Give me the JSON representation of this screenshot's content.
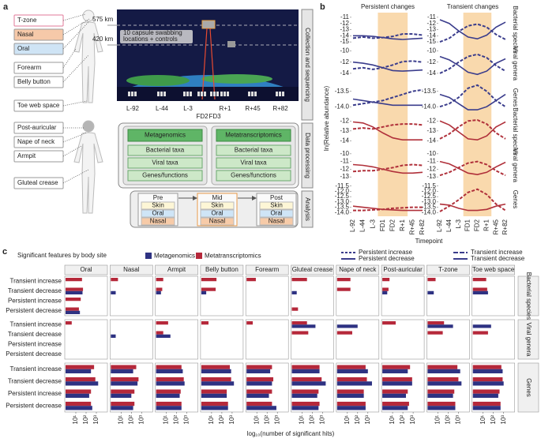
{
  "diagram": {
    "label": "a",
    "body_sites_upper": [
      "T-zone",
      "Nasal",
      "Oral",
      "Forearm",
      "Belly button",
      "Toe web space"
    ],
    "body_sites_lower": [
      "Post-auricular",
      "Nape of neck",
      "Armpit",
      "Gluteal crease"
    ],
    "altitudes": [
      "575 km",
      "420 km"
    ],
    "capsule_note": [
      "10 capsule swabbing",
      "locations + controls"
    ],
    "timepoints": [
      "L-92",
      "L-44",
      "L-3",
      "FD2",
      "FD3",
      "R+1",
      "R+45",
      "R+82"
    ],
    "stages": [
      "Collection and sequencing",
      "Data processing",
      "Analysis"
    ],
    "pipelines": [
      {
        "title": "Metagenomics",
        "steps": [
          "Bacterial taxa",
          "Viral taxa",
          "Genes/functions"
        ]
      },
      {
        "title": "Metatranscriptomics",
        "steps": [
          "Bacterial taxa",
          "Viral taxa",
          "Genes/functions"
        ]
      }
    ],
    "analysis": [
      {
        "title": "Pre",
        "sites": [
          "Skin",
          "Oral",
          "Nasal"
        ]
      },
      {
        "title": "Mid",
        "sites": [
          "Skin",
          "Oral",
          "Nasal"
        ]
      },
      {
        "title": "Post",
        "sites": [
          "Skin",
          "Oral",
          "Nasal"
        ]
      }
    ]
  },
  "chart_data": [
    {
      "type": "line",
      "label": "b",
      "columns": [
        "Persistent changes",
        "Transient changes"
      ],
      "x": [
        "L-92",
        "L-44",
        "L-3",
        "FD1",
        "FD2",
        "R+1",
        "R+45",
        "R+82"
      ],
      "xlabel": "Timepoint",
      "ylabel": "ln(Relative abundance)",
      "legend": [
        {
          "name": "Persistent increase",
          "dashed": true,
          "color": "#3b3d8c"
        },
        {
          "name": "Persistent decrease",
          "dashed": false,
          "color": "#3b3d8c"
        },
        {
          "name": "Transient increase",
          "dashed": true,
          "color": "#3b3d8c"
        },
        {
          "name": "Transient decrease",
          "dashed": false,
          "color": "#3b3d8c"
        }
      ],
      "rows": [
        {
          "name": "Bacterial species",
          "color": "#3b3d8c",
          "ylim": [
            -15.5,
            -10.5
          ],
          "yticks": [
            -11,
            -12,
            -13,
            -14,
            -15
          ],
          "persistent": {
            "increase": [
              -14.4,
              -14.2,
              -14.4,
              -14.3,
              -14.1,
              -13.7,
              -13.7,
              -13.9
            ],
            "decrease": [
              -14.0,
              -14.0,
              -14.1,
              -14.3,
              -14.5,
              -14.6,
              -14.5,
              -14.4
            ]
          },
          "transient": {
            "increase": [
              -15.0,
              -14.4,
              -13.3,
              -12.4,
              -12.1,
              -12.6,
              -13.8,
              -14.6
            ],
            "decrease": [
              -11.4,
              -12.0,
              -13.2,
              -14.2,
              -14.5,
              -13.9,
              -12.6,
              -11.8
            ]
          }
        },
        {
          "name": "Viral genera",
          "color": "#3b3d8c",
          "ylim": [
            -15,
            -9.5
          ],
          "yticks": [
            -10,
            -12,
            -14
          ],
          "persistent": {
            "increase": [
              -13.2,
              -13.0,
              -13.3,
              -13.0,
              -12.5,
              -11.9,
              -11.8,
              -12.0
            ],
            "decrease": [
              -12.0,
              -12.2,
              -12.5,
              -13.0,
              -13.5,
              -13.6,
              -13.5,
              -13.4
            ]
          },
          "transient": {
            "increase": [
              -14.0,
              -13.2,
              -12.0,
              -11.0,
              -10.6,
              -11.2,
              -12.6,
              -13.6
            ],
            "decrease": [
              -11.0,
              -11.6,
              -12.6,
              -13.8,
              -14.2,
              -13.6,
              -12.2,
              -11.4
            ]
          }
        },
        {
          "name": "Genes",
          "color": "#3b3d8c",
          "ylim": [
            -14.2,
            -13.2
          ],
          "yticks": [
            -13.5,
            {
              "value": -14,
              "label": "-14.0"
            }
          ],
          "persistent": {
            "increase": [
              -13.95,
              -13.9,
              -13.85,
              -13.8,
              -13.7,
              -13.6,
              -13.5,
              -13.45
            ],
            "decrease": [
              -13.75,
              -13.8,
              -13.85,
              -13.9,
              -13.95,
              -13.95,
              -13.95,
              -13.95
            ]
          },
          "transient": {
            "increase": [
              -14.0,
              -13.9,
              -13.7,
              -13.4,
              -13.3,
              -13.5,
              -13.8,
              -14.0
            ],
            "decrease": [
              -13.6,
              -13.7,
              -13.9,
              -14.1,
              -14.1,
              -14.0,
              -13.8,
              -13.6
            ]
          }
        },
        {
          "name": "Bacterial species",
          "color": "#b0303a",
          "ylim": [
            -14.6,
            -11.5
          ],
          "yticks": [
            -12,
            -13,
            -14
          ],
          "persistent": {
            "increase": [
              -12.8,
              -12.7,
              -12.8,
              -12.6,
              -12.4,
              -12.3,
              -12.3,
              -12.4
            ],
            "decrease": [
              -12.1,
              -12.2,
              -12.6,
              -13.2,
              -13.7,
              -13.9,
              -13.9,
              -13.9
            ]
          },
          "transient": {
            "increase": [
              -13.8,
              -13.3,
              -12.6,
              -12.0,
              -11.9,
              -12.3,
              -13.2,
              -13.8
            ],
            "decrease": [
              -12.0,
              -12.4,
              -13.1,
              -13.8,
              -13.9,
              -13.5,
              -12.6,
              -12.1
            ]
          }
        },
        {
          "name": "Viral genera",
          "color": "#b0303a",
          "ylim": [
            -13.5,
            -9.5
          ],
          "yticks": [
            -10,
            -11,
            -12,
            -13
          ],
          "persistent": {
            "increase": [
              -12.3,
              -12.2,
              -12.2,
              -12.0,
              -11.8,
              -11.5,
              -11.4,
              -11.5
            ],
            "decrease": [
              -11.4,
              -11.5,
              -11.7,
              -12.0,
              -12.3,
              -12.5,
              -12.5,
              -12.4
            ]
          },
          "transient": {
            "increase": [
              -12.8,
              -12.4,
              -11.8,
              -11.2,
              -11.0,
              -11.4,
              -12.2,
              -12.8
            ],
            "decrease": [
              -11.0,
              -11.3,
              -11.9,
              -12.5,
              -12.7,
              -12.4,
              -11.7,
              -11.1
            ]
          }
        },
        {
          "name": "Genes",
          "color": "#b0303a",
          "ylim": [
            -14.2,
            -11.3
          ],
          "yticks": [
            -11.5,
            {
              "value": -12,
              "label": "-12.0"
            },
            -12.5,
            {
              "value": -13,
              "label": "-13.0"
            },
            -13.5,
            {
              "value": -14,
              "label": "-14.0"
            }
          ],
          "persistent": {
            "increase": [
              -13.8,
              -13.8,
              -13.75,
              -13.7,
              -13.6,
              -13.55,
              -13.5,
              -13.5
            ],
            "decrease": [
              -13.4,
              -13.5,
              -13.6,
              -13.7,
              -13.75,
              -13.8,
              -13.8,
              -13.8
            ]
          },
          "transient": {
            "increase": [
              -13.9,
              -13.4,
              -12.8,
              -12.1,
              -11.8,
              -12.3,
              -13.2,
              -13.8
            ],
            "decrease": [
              -13.2,
              -13.3,
              -13.6,
              -13.8,
              -13.8,
              -13.7,
              -13.4,
              -13.2
            ]
          }
        }
      ]
    },
    {
      "type": "bar",
      "orientation": "horizontal",
      "label": "c",
      "title": "Significant features by body site",
      "xlabel": "log₁₀(number of significant hits)",
      "xscale": "log",
      "xlim": [
        1,
        10000
      ],
      "xticks": [
        {
          "value": 10,
          "label": "10¹"
        },
        {
          "value": 100,
          "label": "10²"
        },
        {
          "value": 1000,
          "label": "10³"
        }
      ],
      "categories": [
        "Transient increase",
        "Transient decrease",
        "Persistent increase",
        "Persistent decrease"
      ],
      "sites": [
        "Oral",
        "Nasal",
        "Armpit",
        "Belly button",
        "Forearm",
        "Gluteal crease",
        "Nape of neck",
        "Post-auricular",
        "T-zone",
        "Toe web space"
      ],
      "series": [
        {
          "name": "Metagenomics",
          "color": "#2e3282"
        },
        {
          "name": "Metatranscriptomics",
          "color": "#b5283a"
        }
      ],
      "groups": [
        {
          "name": "Bacterial species",
          "series": [
            {
              "values": [
                [
                  null,
                  45,
                  null,
                  25
                ],
                [
                  null,
                  3,
                  null,
                  null
                ],
                [
                  null,
                  3,
                  null,
                  null
                ],
                [
                  null,
                  3,
                  null,
                  null
                ],
                [
                  null,
                  null,
                  null,
                  null
                ],
                [
                  null,
                  3,
                  null,
                  null
                ],
                [
                  null,
                  null,
                  null,
                  null
                ],
                [
                  null,
                  3,
                  null,
                  null
                ],
                [
                  null,
                  4,
                  null,
                  null
                ],
                [
                  null,
                  30,
                  null,
                  null
                ]
              ]
            },
            {
              "values": [
                [
                  40,
                  50,
                  30,
                  20
                ],
                [
                  5,
                  null,
                  null,
                  null
                ],
                [
                  5,
                  4,
                  null,
                  null
                ],
                [
                  30,
                  25,
                  null,
                  null
                ],
                [
                  8,
                  null,
                  null,
                  null
                ],
                [
                  30,
                  null,
                  null,
                  4
                ],
                [
                  20,
                  20,
                  null,
                  null
                ],
                [
                  5,
                  4,
                  null,
                  null
                ],
                [
                  6,
                  null,
                  null,
                  null
                ],
                [
                  20,
                  25,
                  null,
                  null
                ]
              ]
            }
          ]
        },
        {
          "name": "Viral genera",
          "series": [
            {
              "values": [
                [
                  null,
                  null,
                  null,
                  null
                ],
                [
                  null,
                  3,
                  null,
                  null
                ],
                [
                  null,
                  25,
                  null,
                  null
                ],
                [
                  null,
                  null,
                  null,
                  null
                ],
                [
                  null,
                  null,
                  null,
                  null
                ],
                [
                  200,
                  null,
                  null,
                  null
                ],
                [
                  100,
                  null,
                  null,
                  null
                ],
                [
                  null,
                  null,
                  null,
                  null
                ],
                [
                  300,
                  null,
                  null,
                  null
                ],
                [
                  60,
                  null,
                  null,
                  null
                ]
              ]
            },
            {
              "values": [
                [
                  4,
                  null,
                  null,
                  null
                ],
                [
                  null,
                  null,
                  null,
                  null
                ],
                [
                  15,
                  5,
                  null,
                  null
                ],
                [
                  5,
                  null,
                  null,
                  null
                ],
                [
                  4,
                  null,
                  null,
                  null
                ],
                [
                  30,
                  40,
                  null,
                  null
                ],
                [
                  null,
                  30,
                  null,
                  null
                ],
                [
                  20,
                  null,
                  null,
                  null
                ],
                [
                  40,
                  30,
                  null,
                  null
                ],
                [
                  null,
                  30,
                  null,
                  null
                ]
              ]
            }
          ]
        },
        {
          "name": "Genes",
          "series": [
            {
              "values": [
                [
                  300,
                  1500,
                  200,
                  400
                ],
                [
                  150,
                  400,
                  100,
                  150
                ],
                [
                  400,
                  600,
                  200,
                  300
                ],
                [
                  800,
                  1500,
                  300,
                  400
                ],
                [
                  200,
                  300,
                  150,
                  800
                ],
                [
                  500,
                  2000,
                  300,
                  400
                ],
                [
                  1000,
                  2500,
                  400,
                  600
                ],
                [
                  300,
                  800,
                  200,
                  300
                ],
                [
                  1500,
                  2000,
                  300,
                  500
                ],
                [
                  800,
                  1000,
                  300,
                  500
                ]
              ]
            },
            {
              "values": [
                [
                  600,
                  800,
                  300,
                  300
                ],
                [
                  300,
                  500,
                  200,
                  200
                ],
                [
                  300,
                  500,
                  250,
                  300
                ],
                [
                  600,
                  800,
                  300,
                  400
                ],
                [
                  300,
                  400,
                  300,
                  300
                ],
                [
                  500,
                  800,
                  400,
                  500
                ],
                [
                  600,
                  800,
                  400,
                  600
                ],
                [
                  500,
                  800,
                  300,
                  400
                ],
                [
                  800,
                  1000,
                  400,
                  500
                ],
                [
                  600,
                  800,
                  400,
                  500
                ]
              ]
            }
          ]
        }
      ]
    }
  ]
}
